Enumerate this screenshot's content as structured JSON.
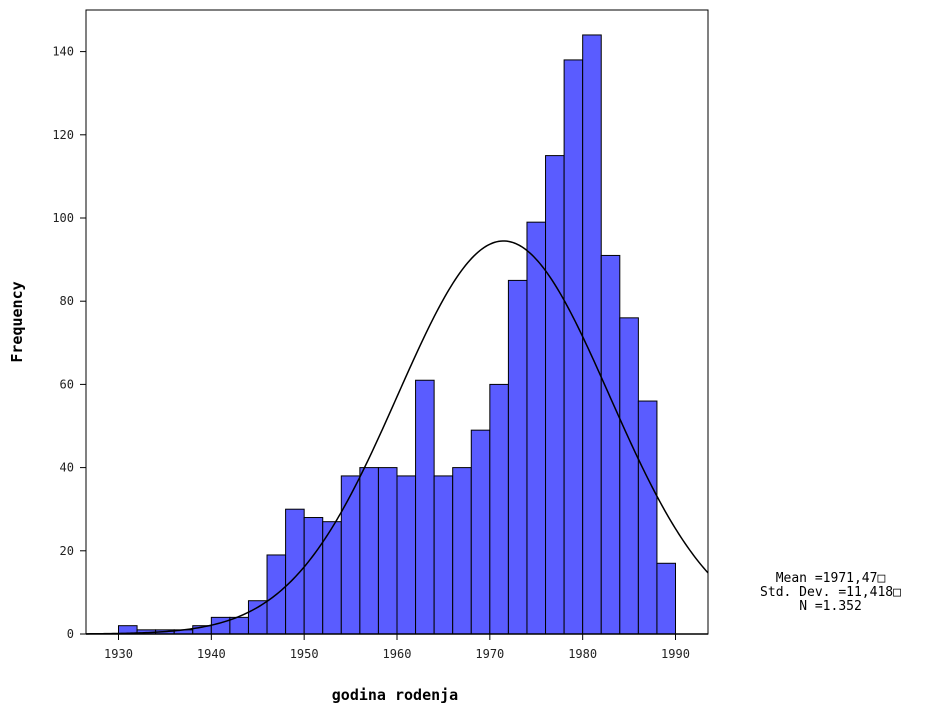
{
  "chart_data": {
    "type": "bar",
    "xlabel": "godina rodenja",
    "ylabel": "Frequency",
    "xlim": [
      1926.5,
      1993.5
    ],
    "ylim": [
      0,
      150
    ],
    "x_ticks": [
      1930,
      1940,
      1950,
      1960,
      1970,
      1980,
      1990
    ],
    "y_ticks": [
      0,
      20,
      40,
      60,
      80,
      100,
      120,
      140
    ],
    "bin_width": 2,
    "bins": [
      {
        "start": 1930,
        "end": 1932,
        "value": 2
      },
      {
        "start": 1932,
        "end": 1934,
        "value": 1
      },
      {
        "start": 1934,
        "end": 1936,
        "value": 1
      },
      {
        "start": 1936,
        "end": 1938,
        "value": 1
      },
      {
        "start": 1938,
        "end": 1940,
        "value": 2
      },
      {
        "start": 1940,
        "end": 1942,
        "value": 4
      },
      {
        "start": 1942,
        "end": 1944,
        "value": 4
      },
      {
        "start": 1944,
        "end": 1946,
        "value": 8
      },
      {
        "start": 1946,
        "end": 1948,
        "value": 19
      },
      {
        "start": 1948,
        "end": 1950,
        "value": 30
      },
      {
        "start": 1950,
        "end": 1952,
        "value": 28
      },
      {
        "start": 1952,
        "end": 1954,
        "value": 27
      },
      {
        "start": 1954,
        "end": 1956,
        "value": 38
      },
      {
        "start": 1956,
        "end": 1958,
        "value": 40
      },
      {
        "start": 1958,
        "end": 1960,
        "value": 40
      },
      {
        "start": 1960,
        "end": 1962,
        "value": 38
      },
      {
        "start": 1962,
        "end": 1964,
        "value": 61
      },
      {
        "start": 1964,
        "end": 1966,
        "value": 38
      },
      {
        "start": 1966,
        "end": 1968,
        "value": 40
      },
      {
        "start": 1968,
        "end": 1970,
        "value": 49
      },
      {
        "start": 1970,
        "end": 1972,
        "value": 60
      },
      {
        "start": 1972,
        "end": 1974,
        "value": 85
      },
      {
        "start": 1974,
        "end": 1976,
        "value": 99
      },
      {
        "start": 1976,
        "end": 1978,
        "value": 115
      },
      {
        "start": 1978,
        "end": 1980,
        "value": 138
      },
      {
        "start": 1980,
        "end": 1982,
        "value": 144
      },
      {
        "start": 1982,
        "end": 1984,
        "value": 91
      },
      {
        "start": 1984,
        "end": 1986,
        "value": 76
      },
      {
        "start": 1986,
        "end": 1988,
        "value": 56
      },
      {
        "start": 1988,
        "end": 1990,
        "value": 17
      }
    ],
    "normal_curve": {
      "mean": 1971.47,
      "std_dev": 11.418,
      "n": 1352
    },
    "bar_color": "#5a5cff",
    "bar_stroke": "#000000",
    "grid": false
  },
  "stats_box": {
    "mean_label": "Mean =1971,47□",
    "std_label": "Std. Dev. =11,418□",
    "n_label": "N =1.352"
  }
}
